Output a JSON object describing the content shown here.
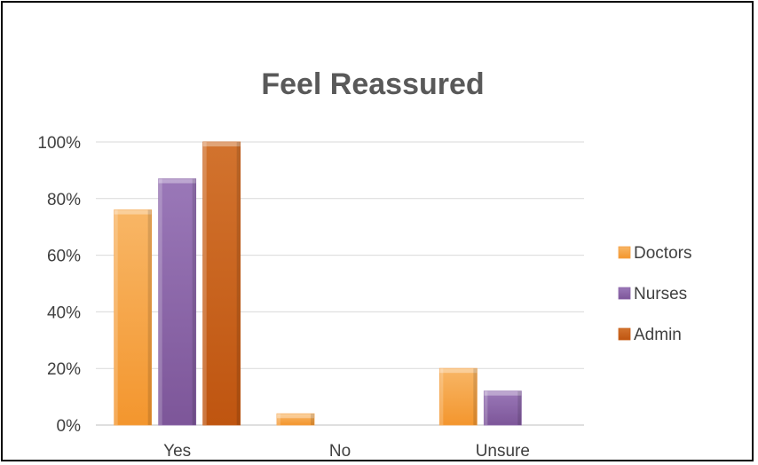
{
  "chart_data": {
    "type": "bar",
    "title": "Feel Reassured",
    "categories": [
      "Yes",
      "No",
      "Unsure"
    ],
    "series": [
      {
        "name": "Doctors",
        "values": [
          76,
          4,
          20
        ],
        "color": "#F4A043"
      },
      {
        "name": "Nurses",
        "values": [
          87,
          0,
          12
        ],
        "color": "#8A64A8"
      },
      {
        "name": "Admin",
        "values": [
          100,
          0,
          0
        ],
        "color": "#C8601A"
      }
    ],
    "ylim": [
      0,
      100
    ],
    "yticks": [
      "0%",
      "20%",
      "40%",
      "60%",
      "80%",
      "100%"
    ],
    "grid": true,
    "legend": "right"
  }
}
